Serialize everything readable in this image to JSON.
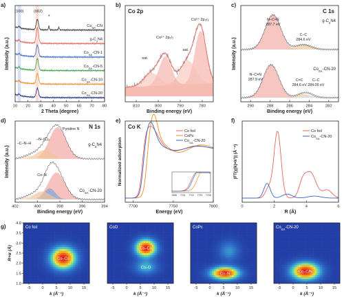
{
  "panel_letters": [
    "a)",
    "b)",
    "c)",
    "d)",
    "e)",
    "f)",
    "g)"
  ],
  "colors": {
    "red": "#e8625a",
    "red_fill": "#f3a8a2",
    "blue": "#3a66c4",
    "blue_fill": "#7fa3da",
    "orange": "#f08a24",
    "green": "#3aa048",
    "navy": "#1f2f86",
    "gray": "#888888"
  },
  "chart_data": [
    {
      "id": "a",
      "type": "line",
      "xlabel": "2 Theta (degree)",
      "ylabel": "Intensity (a.u.)",
      "xlim": [
        10,
        80
      ],
      "xticks": [
        10,
        20,
        30,
        40,
        50,
        60,
        70,
        80
      ],
      "annotations": [
        "(100)",
        "(002)",
        "*"
      ],
      "highlight_bands": [
        [
          12,
          14.5
        ],
        [
          26,
          28.5
        ]
      ],
      "series": [
        {
          "name": "Co$_{NP}$-CN",
          "label_main": "Co",
          "label_sub": "NP",
          "label_tail": "-CN",
          "color": "#3a3a3a",
          "offset": 6,
          "peak_x": 27.4,
          "peak_h": 0.8
        },
        {
          "name": "g-C3N4",
          "label_main": "g-C",
          "label_sub": "3",
          "label_tail": "N4",
          "color": "#e8625a",
          "offset": 5,
          "peak_x": 27.4,
          "peak_h": 1.2
        },
        {
          "name": "CoSA-CN-1",
          "label_main": "Co",
          "label_sub": "SA",
          "label_tail": "-CN-1",
          "color": "#3a66c4",
          "offset": 4,
          "peak_x": 27.4,
          "peak_h": 0.9
        },
        {
          "name": "CoSA-CN-5",
          "label_main": "Co",
          "label_sub": "SA",
          "label_tail": "-CN-5",
          "color": "#3aa048",
          "offset": 3,
          "peak_x": 27.4,
          "peak_h": 0.9
        },
        {
          "name": "CoSA-CN-10",
          "label_main": "Co",
          "label_sub": "SA",
          "label_tail": "-CN-10",
          "color": "#f08a24",
          "offset": 2,
          "peak_x": 27.4,
          "peak_h": 0.8
        },
        {
          "name": "CoSA-CN-20",
          "label_main": "Co",
          "label_sub": "SA",
          "label_tail": "-CN-20",
          "color": "#1f2f86",
          "offset": 1,
          "peak_x": 27.4,
          "peak_h": 0.7
        }
      ]
    },
    {
      "id": "b",
      "type": "line",
      "title": "Co 2p",
      "xlabel": "Binding energy (eV)",
      "ylabel": "",
      "xlim": [
        815,
        775
      ],
      "xticks": [
        810,
        800,
        790,
        780
      ],
      "annotations": [
        "Co²⁺ 2p₁/₂",
        "Co²⁺ 2p₃/₂",
        "sat.",
        "sat."
      ],
      "peaks": [
        {
          "center": 780.8,
          "height": 1.0,
          "width": 2.6
        },
        {
          "center": 786.5,
          "height": 0.45,
          "width": 3.5
        },
        {
          "center": 796.8,
          "height": 0.55,
          "width": 2.8
        },
        {
          "center": 803.0,
          "height": 0.25,
          "width": 3.5
        }
      ]
    },
    {
      "id": "c",
      "type": "line",
      "title": "C 1s",
      "xlabel": "Binding energy (eV)",
      "ylabel": "Intensity (a.u.)",
      "xlim": [
        291,
        281
      ],
      "xticks": [
        290,
        288,
        286,
        284,
        282
      ],
      "groups": [
        {
          "name": "g-C3N4",
          "label_main": "g-C",
          "label_sub": "3",
          "label_tail": "N4",
          "peaks": [
            {
              "center": 287.7,
              "height": 1.0,
              "width": 0.8
            },
            {
              "center": 284.6,
              "height": 0.14,
              "width": 0.8
            }
          ],
          "annotations": [
            "N–C=N",
            "287.7 eV",
            "C–C",
            "284.6 eV"
          ]
        },
        {
          "name": "CoSA-CN-20",
          "label_main": "Co",
          "label_sub": "SA",
          "label_tail": "-CN-20",
          "peaks": [
            {
              "center": 287.9,
              "height": 0.95,
              "width": 0.8
            },
            {
              "center": 284.6,
              "height": 0.1,
              "width": 0.7
            },
            {
              "center": 284.05,
              "height": 0.06,
              "width": 0.6
            }
          ],
          "annotations": [
            "N–C=N",
            "287.9 eV",
            "C=C",
            "284.6 eV",
            "C–C",
            "284.05 eV"
          ]
        }
      ]
    },
    {
      "id": "d",
      "type": "line",
      "title": "N 1s",
      "xlabel": "Binding energy (eV)",
      "ylabel": "Intensity (a.u.)",
      "xlim": [
        402,
        394
      ],
      "xticks": [
        402,
        400,
        398,
        396,
        394
      ],
      "groups": [
        {
          "name": "g-C3N4",
          "label_main": "g-C",
          "label_sub": "3",
          "label_tail": "N4",
          "peaks": [
            {
              "center": 398.2,
              "height": 1.0,
              "width": 0.75
            },
            {
              "center": 399.4,
              "height": 0.28,
              "width": 0.7
            },
            {
              "center": 400.7,
              "height": 0.1,
              "width": 0.6
            }
          ],
          "annotations": [
            "Pyridine N",
            "–N–(C)₃",
            "–C–N–H"
          ]
        },
        {
          "name": "CoSA-CN-20",
          "label_main": "Co",
          "label_sub": "SA",
          "label_tail": "-CN-20",
          "peaks": [
            {
              "center": 398.3,
              "height": 0.85,
              "width": 0.75
            },
            {
              "center": 398.9,
              "height": 0.35,
              "width": 0.5
            },
            {
              "center": 399.6,
              "height": 0.25,
              "width": 0.7
            },
            {
              "center": 400.8,
              "height": 0.08,
              "width": 0.6
            }
          ],
          "annotations": [
            "Co–N"
          ]
        }
      ]
    },
    {
      "id": "e",
      "type": "line",
      "title": "Co K",
      "xlabel": "Energy (eV)",
      "ylabel": "Normalized adsorption",
      "xlim": [
        7690,
        7800
      ],
      "xticks": [
        7700,
        7750,
        7800
      ],
      "inset_xticks": [
        7696,
        7704,
        7712,
        7720,
        7728
      ],
      "series": [
        {
          "name": "Co foil",
          "label_main": "Co foil",
          "label_sub": "",
          "label_tail": "",
          "color": "#e8625a"
        },
        {
          "name": "CoPc",
          "label_main": "CoPc",
          "label_sub": "",
          "label_tail": "",
          "color": "#f08a24"
        },
        {
          "name": "CoSA-CN-20",
          "label_main": "Co",
          "label_sub": "SA",
          "label_tail": "-CN-20",
          "color": "#3a66c4"
        }
      ]
    },
    {
      "id": "f",
      "type": "line",
      "xlabel": "R (Å)",
      "ylabel": "|FT(χ(k)×k³)| (Å⁻⁴)",
      "xlim": [
        0,
        6
      ],
      "xticks": [
        0,
        2,
        4,
        6
      ],
      "series": [
        {
          "name": "Co foil",
          "label_main": "Co foil",
          "label_sub": "",
          "label_tail": "",
          "color": "#e8625a",
          "peaks": [
            {
              "center": 2.2,
              "height": 1.0,
              "width": 0.22
            },
            {
              "center": 1.65,
              "height": 0.15,
              "width": 0.2
            },
            {
              "center": 4.25,
              "height": 0.38,
              "width": 0.35
            },
            {
              "center": 3.75,
              "height": 0.18,
              "width": 0.22
            },
            {
              "center": 5.3,
              "height": 0.12,
              "width": 0.3
            }
          ]
        },
        {
          "name": "CoSA-CN-20",
          "label_main": "Co",
          "label_sub": "SA",
          "label_tail": "-CN-20",
          "color": "#3a66c4",
          "peaks": [
            {
              "center": 1.55,
              "height": 0.22,
              "width": 0.2
            },
            {
              "center": 2.8,
              "height": 0.06,
              "width": 0.3
            },
            {
              "center": 4.5,
              "height": 0.03,
              "width": 0.4
            }
          ]
        }
      ]
    },
    {
      "id": "g",
      "type": "heatmap",
      "xlabel": "k (Å⁻¹)",
      "ylabel": "R+α (Å)",
      "xlim": [
        -7,
        17
      ],
      "ylim": [
        1,
        4
      ],
      "xticks": [
        -5,
        0,
        5,
        10,
        15
      ],
      "yticks": [
        1.0,
        1.5,
        2.0,
        2.5,
        3.0,
        3.5,
        4.0
      ],
      "maps": [
        {
          "title": "Co foil",
          "title_main": "Co foil",
          "title_sub": "",
          "title_tail": "",
          "spots": [
            {
              "k": 7.5,
              "r": 2.25,
              "a": 1.0,
              "sk": 3.2,
              "sr": 0.38,
              "label": "Co–Co"
            }
          ]
        },
        {
          "title": "CoO",
          "title_main": "CoO",
          "title_sub": "",
          "title_tail": "",
          "spots": [
            {
              "k": 7.0,
              "r": 2.75,
              "a": 1.0,
              "sk": 2.6,
              "sr": 0.3,
              "label": "Co–Co"
            },
            {
              "k": 7.0,
              "r": 1.8,
              "a": 0.35,
              "sk": 3.0,
              "sr": 0.25,
              "label": "Co–O"
            }
          ]
        },
        {
          "title": "CoPc",
          "title_main": "CoPc",
          "title_sub": "",
          "title_tail": "",
          "spots": [
            {
              "k": 5.5,
              "r": 1.5,
              "a": 1.0,
              "sk": 3.6,
              "sr": 0.22,
              "label": "Co–N"
            },
            {
              "k": 7.0,
              "r": 2.6,
              "a": 0.28,
              "sk": 2.6,
              "sr": 0.35,
              "label": ""
            }
          ]
        },
        {
          "title": "CoSA-CN-20",
          "title_main": "Co",
          "title_sub": "SA",
          "title_tail": "-CN-20",
          "spots": [
            {
              "k": 4.5,
              "r": 1.6,
              "a": 1.0,
              "sk": 3.6,
              "sr": 0.3,
              "label": "Co–C/N"
            }
          ]
        }
      ]
    }
  ]
}
